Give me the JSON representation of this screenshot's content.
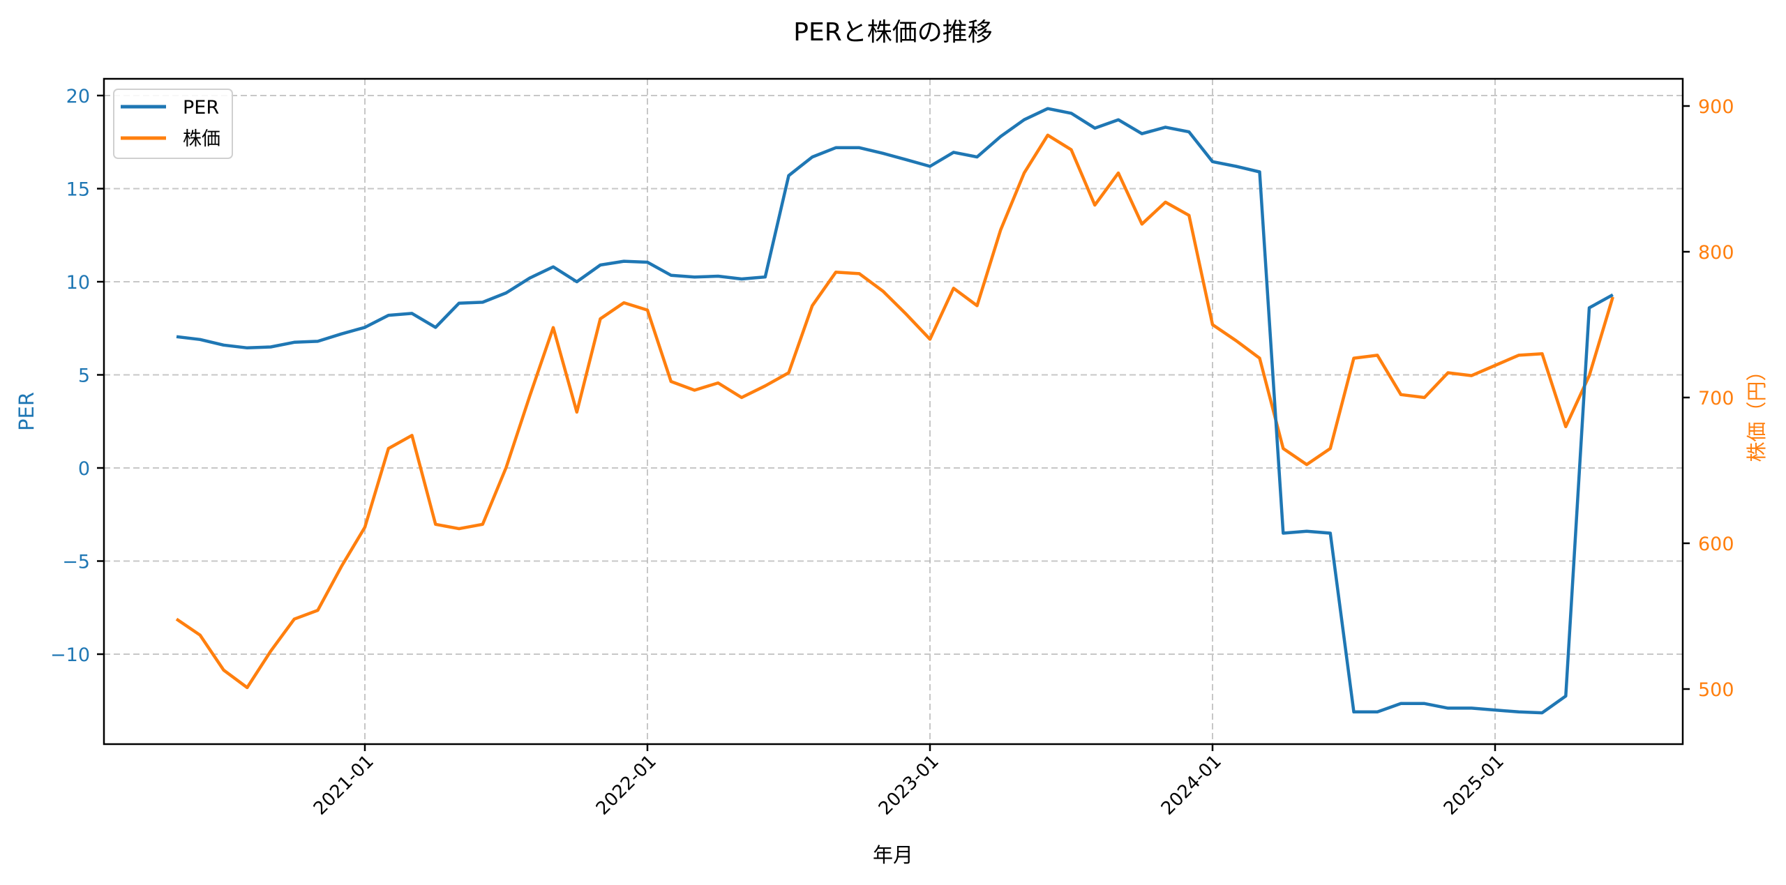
{
  "chart_data": {
    "type": "line",
    "title": "PERと株価の推移",
    "xlabel": "年月",
    "ylabel_left": "PER",
    "ylabel_right": "株価（円）",
    "ylim_left": [
      -14.5,
      21
    ],
    "ylim_right": [
      465,
      911
    ],
    "yticks_left": [
      -10,
      -5,
      0,
      5,
      10,
      15,
      20
    ],
    "yticks_left_labels": [
      "−10",
      "−5",
      "0",
      "5",
      "10",
      "15",
      "20"
    ],
    "yticks_right": [
      500,
      600,
      700,
      800,
      900
    ],
    "yticks_right_labels": [
      "500",
      "600",
      "700",
      "800",
      "900"
    ],
    "xticks": [
      "2021-01",
      "2022-01",
      "2023-01",
      "2024-01",
      "2025-01"
    ],
    "xtick_rotation": 45,
    "grid": true,
    "legend": {
      "position": "upper left",
      "entries": [
        "PER",
        "株価"
      ]
    },
    "x": [
      "2020-05",
      "2020-06",
      "2020-07",
      "2020-08",
      "2020-09",
      "2020-10",
      "2020-11",
      "2020-12",
      "2021-01",
      "2021-02",
      "2021-03",
      "2021-04",
      "2021-05",
      "2021-06",
      "2021-07",
      "2021-08",
      "2021-09",
      "2021-10",
      "2021-11",
      "2021-12",
      "2022-01",
      "2022-02",
      "2022-03",
      "2022-04",
      "2022-05",
      "2022-06",
      "2022-07",
      "2022-08",
      "2022-09",
      "2022-10",
      "2022-11",
      "2022-12",
      "2023-01",
      "2023-02",
      "2023-03",
      "2023-04",
      "2023-05",
      "2023-06",
      "2023-07",
      "2023-08",
      "2023-09",
      "2023-10",
      "2023-11",
      "2023-12",
      "2024-01",
      "2024-02",
      "2024-03",
      "2024-04",
      "2024-05",
      "2024-06",
      "2024-07",
      "2024-08",
      "2024-09",
      "2024-10",
      "2024-11",
      "2024-12",
      "2025-01",
      "2025-02",
      "2025-03",
      "2025-04",
      "2025-05",
      "2025-06"
    ],
    "series": [
      {
        "name": "PER",
        "axis": "left",
        "color": "#1f77b4",
        "values": [
          7.05,
          6.9,
          6.6,
          6.45,
          6.5,
          6.75,
          6.8,
          7.2,
          7.55,
          8.2,
          8.3,
          7.55,
          8.85,
          8.9,
          9.4,
          10.2,
          10.8,
          10.0,
          10.9,
          11.1,
          11.05,
          10.35,
          10.25,
          10.3,
          10.15,
          10.26,
          15.7,
          16.7,
          17.2,
          17.2,
          16.9,
          16.55,
          16.2,
          16.95,
          16.7,
          17.8,
          18.7,
          19.3,
          19.05,
          18.25,
          18.7,
          17.95,
          18.3,
          18.05,
          16.45,
          16.2,
          15.9,
          -3.5,
          -3.4,
          -3.5,
          -13.1,
          -13.1,
          -12.65,
          -12.65,
          -12.9,
          -12.9,
          -13.0,
          -13.1,
          -13.15,
          -12.25,
          8.6,
          9.3
        ]
      },
      {
        "name": "株価",
        "axis": "right",
        "color": "#ff7f0e",
        "values": [
          548,
          537,
          513,
          501,
          526,
          548,
          554,
          584,
          611,
          665,
          674,
          613,
          610,
          613,
          652,
          701,
          748,
          690,
          754,
          765,
          760,
          711,
          705,
          710,
          700,
          708,
          717,
          763,
          786,
          785,
          773,
          757,
          740,
          775,
          763,
          815,
          854,
          880,
          870,
          832,
          854,
          819,
          834,
          825,
          750,
          739,
          727,
          665,
          654,
          665,
          727,
          729,
          702,
          700,
          717,
          715,
          722,
          729,
          730,
          680,
          715,
          769
        ]
      }
    ]
  },
  "colors": {
    "per": "#1f77b4",
    "price": "#ff7f0e",
    "grid": "#b0b0b0",
    "frame": "#000000"
  }
}
